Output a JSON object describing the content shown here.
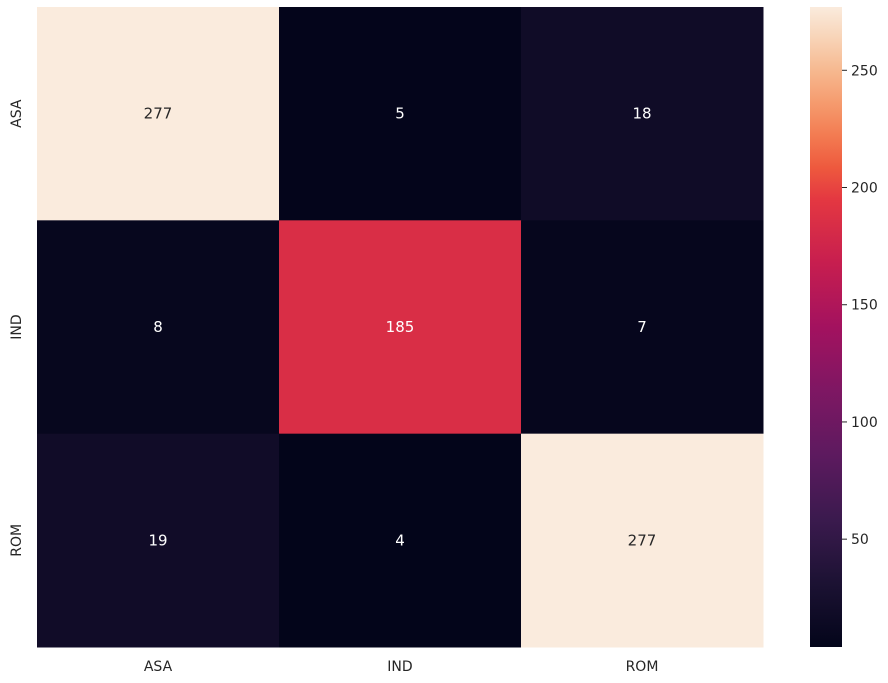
{
  "chart_data": {
    "type": "heatmap",
    "title": "",
    "xlabel": "",
    "ylabel": "",
    "x_categories": [
      "ASA",
      "IND",
      "ROM"
    ],
    "y_categories": [
      "ASA",
      "IND",
      "ROM"
    ],
    "values": [
      [
        277,
        5,
        18
      ],
      [
        8,
        185,
        7
      ],
      [
        19,
        4,
        277
      ]
    ],
    "value_range": [
      4,
      277
    ],
    "colormap": "rocket",
    "colorbar": {
      "ticks": [
        50,
        100,
        150,
        200,
        250
      ],
      "tick_labels": [
        "50",
        "100",
        "150",
        "200",
        "250"
      ]
    },
    "annotations": true,
    "grid": false,
    "legend": "colorbar-right"
  }
}
